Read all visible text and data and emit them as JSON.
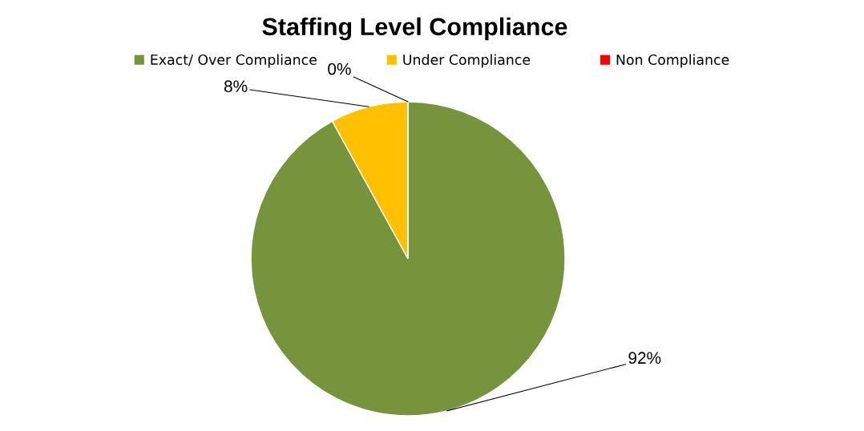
{
  "chart_data": {
    "type": "pie",
    "title": "Staffing Level Compliance",
    "categories": [
      "Exact/ Over Compliance",
      "Under Compliance",
      "Non Compliance"
    ],
    "values": [
      92,
      8,
      0
    ],
    "colors": [
      "#77933c",
      "#ffc000",
      "#ff0000"
    ],
    "value_labels": [
      "92%",
      "8%",
      "0%"
    ],
    "legend": "top"
  }
}
